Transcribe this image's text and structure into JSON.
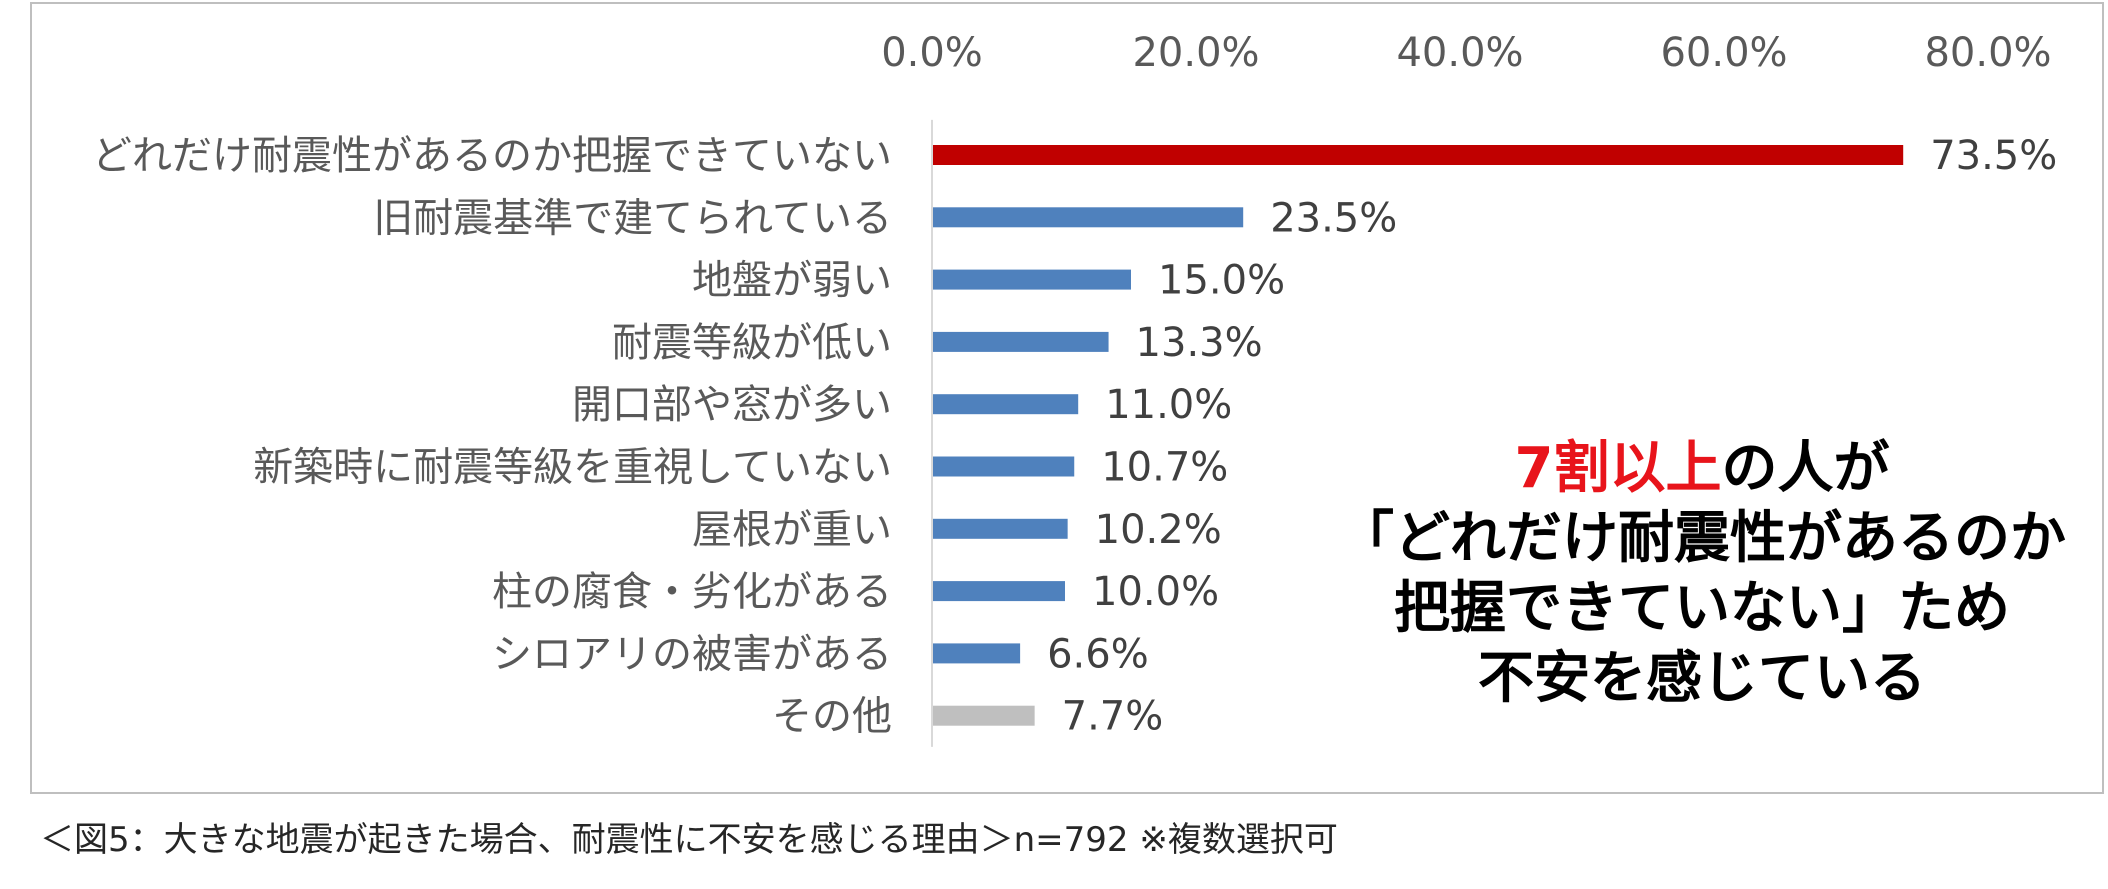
{
  "chart_data": {
    "type": "bar",
    "orientation": "horizontal",
    "categories": [
      "どれだけ耐震性があるのか把握できていない",
      "旧耐震基準で建てられている",
      "地盤が弱い",
      "耐震等級が低い",
      "開口部や窓が多い",
      "新築時に耐震等級を重視していない",
      "屋根が重い",
      "柱の腐食・劣化がある",
      "シロアリの被害がある",
      "その他"
    ],
    "values": [
      73.5,
      23.5,
      15.0,
      13.3,
      11.0,
      10.7,
      10.2,
      10.0,
      6.6,
      7.7
    ],
    "value_labels": [
      "73.5%",
      "23.5%",
      "15.0%",
      "13.3%",
      "11.0%",
      "10.7%",
      "10.2%",
      "10.0%",
      "6.6%",
      "7.7%"
    ],
    "bar_colors": [
      "#c00000",
      "#4f81bd",
      "#4f81bd",
      "#4f81bd",
      "#4f81bd",
      "#4f81bd",
      "#4f81bd",
      "#4f81bd",
      "#4f81bd",
      "#bfbfbf"
    ],
    "xlim": [
      0,
      80
    ],
    "xticks": [
      0,
      20,
      40,
      60,
      80
    ],
    "xtick_labels": [
      "0.0%",
      "20.0%",
      "40.0%",
      "60.0%",
      "80.0%"
    ],
    "axis_position": "top",
    "grid": false,
    "legend": "none"
  },
  "callout": {
    "accent": "7割以上",
    "line1_rest": "の人が",
    "line2": "「どれだけ耐震性があるのか",
    "line3": "把握できていない」ため",
    "line4": "不安を感じている"
  },
  "caption": "＜図5：大きな地震が起きた場合、耐震性に不安を感じる理由＞n=792 ※複数選択可"
}
